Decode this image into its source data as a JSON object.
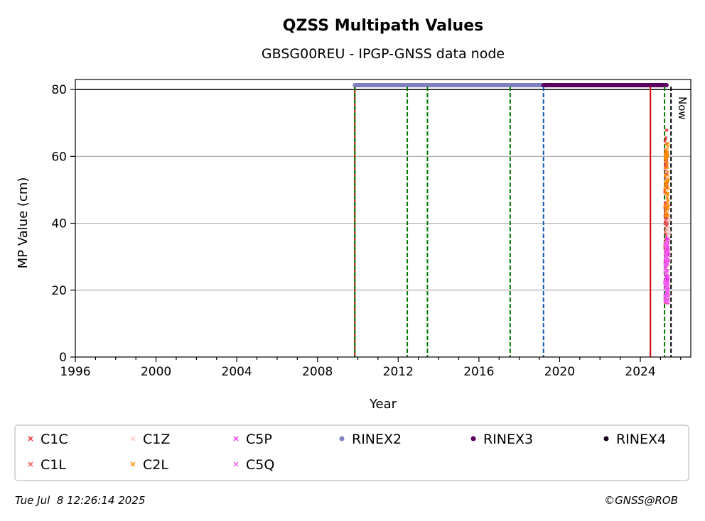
{
  "chart_data": {
    "type": "scatter",
    "title": "QZSS Multipath Values",
    "subtitle": "GBSG00REU - IPGP-GNSS data node",
    "xlabel": "Year",
    "ylabel": "MP Value (cm)",
    "xlim": [
      1996,
      2026.5
    ],
    "ylim": [
      0,
      83
    ],
    "xticks": [
      1996,
      2000,
      2004,
      2008,
      2012,
      2016,
      2020,
      2024
    ],
    "yticks": [
      0,
      20,
      40,
      60,
      80
    ],
    "grid": "horizontal",
    "now_label": "Now",
    "reference_line_y": 80,
    "vlines": [
      {
        "x": 2009.85,
        "color": "#cc0000",
        "style": "solid"
      },
      {
        "x": 2009.85,
        "color": "#007700",
        "style": "dashed"
      },
      {
        "x": 2012.45,
        "color": "#007700",
        "style": "dashed"
      },
      {
        "x": 2013.45,
        "color": "#007700",
        "style": "dashed"
      },
      {
        "x": 2017.55,
        "color": "#007700",
        "style": "dashed"
      },
      {
        "x": 2019.2,
        "color": "#1155aa",
        "style": "dashed"
      },
      {
        "x": 2024.5,
        "color": "#cc0000",
        "style": "solid"
      },
      {
        "x": 2025.2,
        "color": "#007700",
        "style": "dashed"
      },
      {
        "x": 2025.52,
        "color": "#000000",
        "style": "dashed"
      }
    ],
    "format_bars": [
      {
        "name": "RINEX2",
        "start": 2009.85,
        "end": 2019.2,
        "y": 81.3,
        "color": "#8080c0"
      },
      {
        "name": "RINEX3",
        "start": 2019.2,
        "end": 2025.3,
        "y": 81.3,
        "color": "#5c0060"
      }
    ],
    "series": [
      {
        "name": "C1C",
        "color": "#e83030",
        "marker": "x",
        "x_range": [
          2025.2,
          2025.35
        ],
        "y_range": [
          16,
          68
        ]
      },
      {
        "name": "C1L",
        "color": "#e85050",
        "marker": "x",
        "x_range": [
          2025.2,
          2025.35
        ],
        "y_range": [
          30,
          60
        ]
      },
      {
        "name": "C1Z",
        "color": "#f5c8c8",
        "marker": "x",
        "x_range": [
          2025.3,
          2025.45
        ],
        "y_range": [
          16,
          48
        ]
      },
      {
        "name": "C2L",
        "color": "#ff8c00",
        "marker": "x",
        "x_range": [
          2025.2,
          2025.4
        ],
        "y_range": [
          42,
          64
        ]
      },
      {
        "name": "C5P",
        "color": "#ee30ee",
        "marker": "x",
        "x_range": [
          2025.2,
          2025.4
        ],
        "y_range": [
          16,
          36
        ]
      },
      {
        "name": "C5Q",
        "color": "#f060f0",
        "marker": "x",
        "x_range": [
          2025.2,
          2025.4
        ],
        "y_range": [
          16,
          36
        ]
      }
    ],
    "legend": {
      "placement": "below",
      "entries": [
        {
          "label": "C1C",
          "color": "#e83030",
          "marker": "x"
        },
        {
          "label": "C1Z",
          "color": "#f5c8c8",
          "marker": "x"
        },
        {
          "label": "C5P",
          "color": "#ee30ee",
          "marker": "x"
        },
        {
          "label": "RINEX2",
          "color": "#8080c0",
          "marker": "dot"
        },
        {
          "label": "RINEX3",
          "color": "#5c0060",
          "marker": "dot"
        },
        {
          "label": "RINEX4",
          "color": "#1a0018",
          "marker": "dot"
        },
        {
          "label": "C1L",
          "color": "#e85050",
          "marker": "x"
        },
        {
          "label": "C2L",
          "color": "#ff8c00",
          "marker": "x"
        },
        {
          "label": "C5Q",
          "color": "#f060f0",
          "marker": "x"
        }
      ]
    }
  },
  "footer": {
    "timestamp": "Tue Jul  8 12:26:14 2025",
    "credit": "©GNSS@ROB"
  }
}
